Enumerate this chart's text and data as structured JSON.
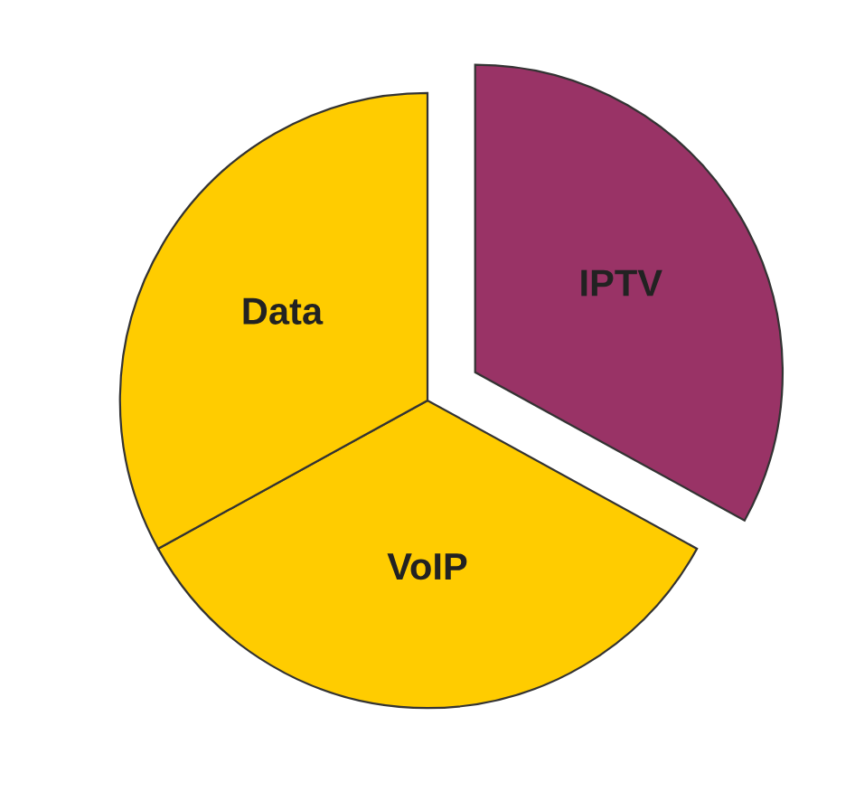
{
  "chart_data": {
    "type": "pie",
    "categories": [
      "IPTV",
      "VoIP",
      "Data"
    ],
    "values": [
      33,
      34,
      33
    ],
    "colors": [
      "#993366",
      "#ffcc00",
      "#ffcc00"
    ]
  }
}
